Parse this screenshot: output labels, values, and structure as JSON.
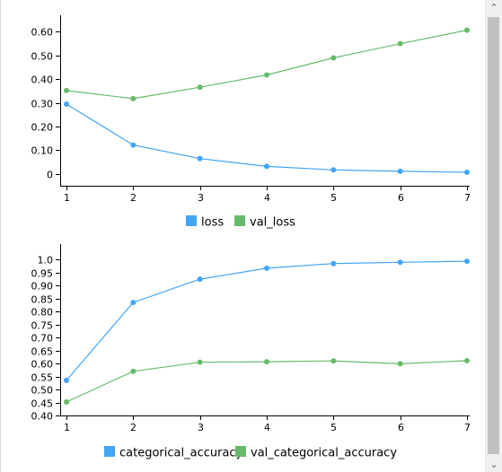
{
  "chart_data": [
    {
      "type": "line",
      "x": [
        1,
        2,
        3,
        4,
        5,
        6,
        7
      ],
      "ylim": [
        -0.05,
        0.67
      ],
      "yticks": [
        "0",
        "0.10",
        "0.20",
        "0.30",
        "0.40",
        "0.50",
        "0.60"
      ],
      "ytick_values": [
        0,
        0.1,
        0.2,
        0.3,
        0.4,
        0.5,
        0.6
      ],
      "xticks": [
        "1",
        "2",
        "3",
        "4",
        "5",
        "6",
        "7"
      ],
      "legend": "bottom-center",
      "series": [
        {
          "name": "loss",
          "color": "#42a5f5",
          "values": [
            0.295,
            0.122,
            0.065,
            0.032,
            0.017,
            0.011,
            0.007
          ]
        },
        {
          "name": "val_loss",
          "color": "#66bb6a",
          "values": [
            0.352,
            0.318,
            0.366,
            0.418,
            0.49,
            0.55,
            0.607
          ]
        }
      ]
    },
    {
      "type": "line",
      "x": [
        1,
        2,
        3,
        4,
        5,
        6,
        7
      ],
      "ylim": [
        0.4,
        1.06
      ],
      "yticks": [
        "0.40",
        "0.45",
        "0.50",
        "0.55",
        "0.60",
        "0.65",
        "0.70",
        "0.75",
        "0.80",
        "0.85",
        "0.90",
        "0.95",
        "1.0"
      ],
      "ytick_values": [
        0.4,
        0.45,
        0.5,
        0.55,
        0.6,
        0.65,
        0.7,
        0.75,
        0.8,
        0.85,
        0.9,
        0.95,
        1.0
      ],
      "xticks": [
        "1",
        "2",
        "3",
        "4",
        "5",
        "6",
        "7"
      ],
      "legend": "bottom-center",
      "series": [
        {
          "name": "categorical_accuracy",
          "color": "#42a5f5",
          "values": [
            0.535,
            0.835,
            0.925,
            0.967,
            0.985,
            0.99,
            0.994
          ]
        },
        {
          "name": "val_categorical_accuracy",
          "color": "#66bb6a",
          "values": [
            0.452,
            0.57,
            0.605,
            0.607,
            0.61,
            0.599,
            0.611
          ]
        }
      ]
    }
  ],
  "scrollbar": {
    "up_icon": "chevron-up-icon",
    "down_icon": "chevron-down-icon"
  }
}
